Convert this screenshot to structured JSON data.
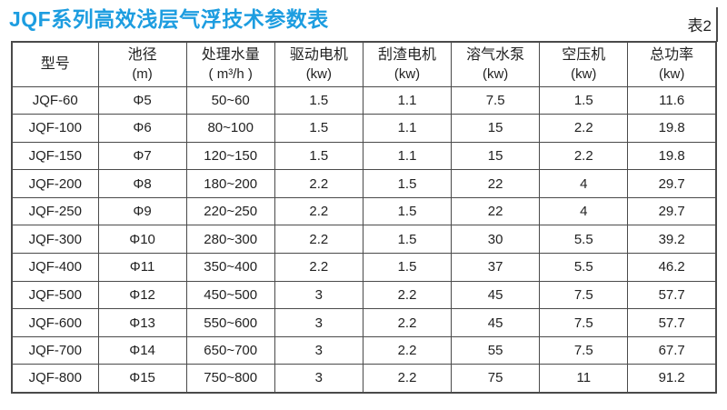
{
  "page": {
    "title": "JQF系列高效浅层气浮技术参数表",
    "table_label": "表2"
  },
  "colors": {
    "title_blue": "#1d9de0",
    "border_gray": "#4a4a4a",
    "text": "#222222"
  },
  "table": {
    "columns": [
      {
        "name": "型号",
        "unit": ""
      },
      {
        "name": "池径",
        "unit": "(m)"
      },
      {
        "name": "处理水量",
        "unit": "( m³/h )"
      },
      {
        "name": "驱动电机",
        "unit": "(kw)"
      },
      {
        "name": "刮渣电机",
        "unit": "(kw)"
      },
      {
        "name": "溶气水泵",
        "unit": "(kw)"
      },
      {
        "name": "空压机",
        "unit": "(kw)"
      },
      {
        "name": "总功率",
        "unit": "(kw)"
      }
    ],
    "rows": [
      [
        "JQF-60",
        "Φ5",
        "50~60",
        "1.5",
        "1.1",
        "7.5",
        "1.5",
        "11.6"
      ],
      [
        "JQF-100",
        "Φ6",
        "80~100",
        "1.5",
        "1.1",
        "15",
        "2.2",
        "19.8"
      ],
      [
        "JQF-150",
        "Φ7",
        "120~150",
        "1.5",
        "1.1",
        "15",
        "2.2",
        "19.8"
      ],
      [
        "JQF-200",
        "Φ8",
        "180~200",
        "2.2",
        "1.5",
        "22",
        "4",
        "29.7"
      ],
      [
        "JQF-250",
        "Φ9",
        "220~250",
        "2.2",
        "1.5",
        "22",
        "4",
        "29.7"
      ],
      [
        "JQF-300",
        "Φ10",
        "280~300",
        "2.2",
        "1.5",
        "30",
        "5.5",
        "39.2"
      ],
      [
        "JQF-400",
        "Φ11",
        "350~400",
        "2.2",
        "1.5",
        "37",
        "5.5",
        "46.2"
      ],
      [
        "JQF-500",
        "Φ12",
        "450~500",
        "3",
        "2.2",
        "45",
        "7.5",
        "57.7"
      ],
      [
        "JQF-600",
        "Φ13",
        "550~600",
        "3",
        "2.2",
        "45",
        "7.5",
        "57.7"
      ],
      [
        "JQF-700",
        "Φ14",
        "650~700",
        "3",
        "2.2",
        "55",
        "7.5",
        "67.7"
      ],
      [
        "JQF-800",
        "Φ15",
        "750~800",
        "3",
        "2.2",
        "75",
        "11",
        "91.2"
      ]
    ]
  }
}
